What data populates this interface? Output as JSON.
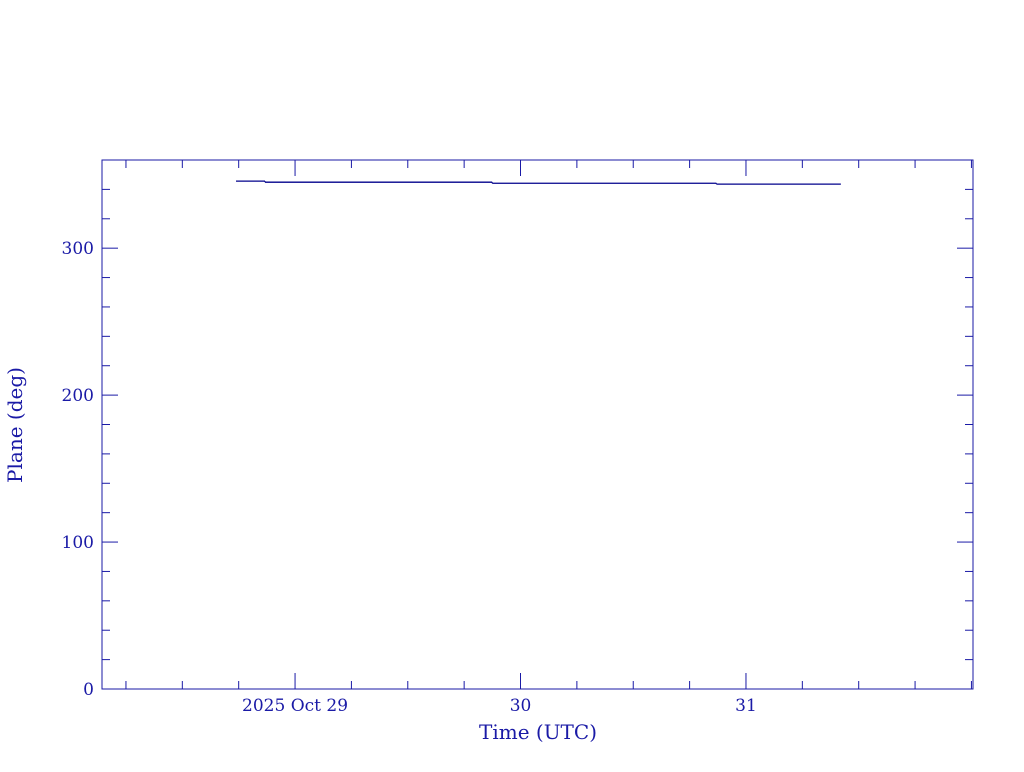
{
  "chart_data": {
    "type": "line",
    "title": "",
    "xlabel": "Time (UTC)",
    "ylabel": "Plane (deg)",
    "xlim": [
      "2025-10-28T03:27",
      "2025-11-01T00:10"
    ],
    "ylim": [
      0,
      360
    ],
    "x_ticks": [
      {
        "t": "2025-10-29T00:00",
        "label": "2025 Oct 29"
      },
      {
        "t": "2025-10-30T00:00",
        "label": "30"
      },
      {
        "t": "2025-10-31T00:00",
        "label": "31"
      }
    ],
    "x_minor_hours": 6,
    "y_ticks": [
      0,
      100,
      200,
      300
    ],
    "y_minor_step": 20,
    "grid": false,
    "series": [
      {
        "step": true,
        "color": "#00008b",
        "points": [
          {
            "x": "2025-10-28T17:43",
            "y": 345.6
          },
          {
            "x": "2025-10-28T20:48",
            "y": 344.9
          },
          {
            "x": "2025-10-29T20:59",
            "y": 344.2
          },
          {
            "x": "2025-10-30T20:51",
            "y": 343.6
          },
          {
            "x": "2025-10-31T10:06",
            "y": 343.6
          }
        ]
      }
    ],
    "axis_color": "#1a1aa6"
  }
}
